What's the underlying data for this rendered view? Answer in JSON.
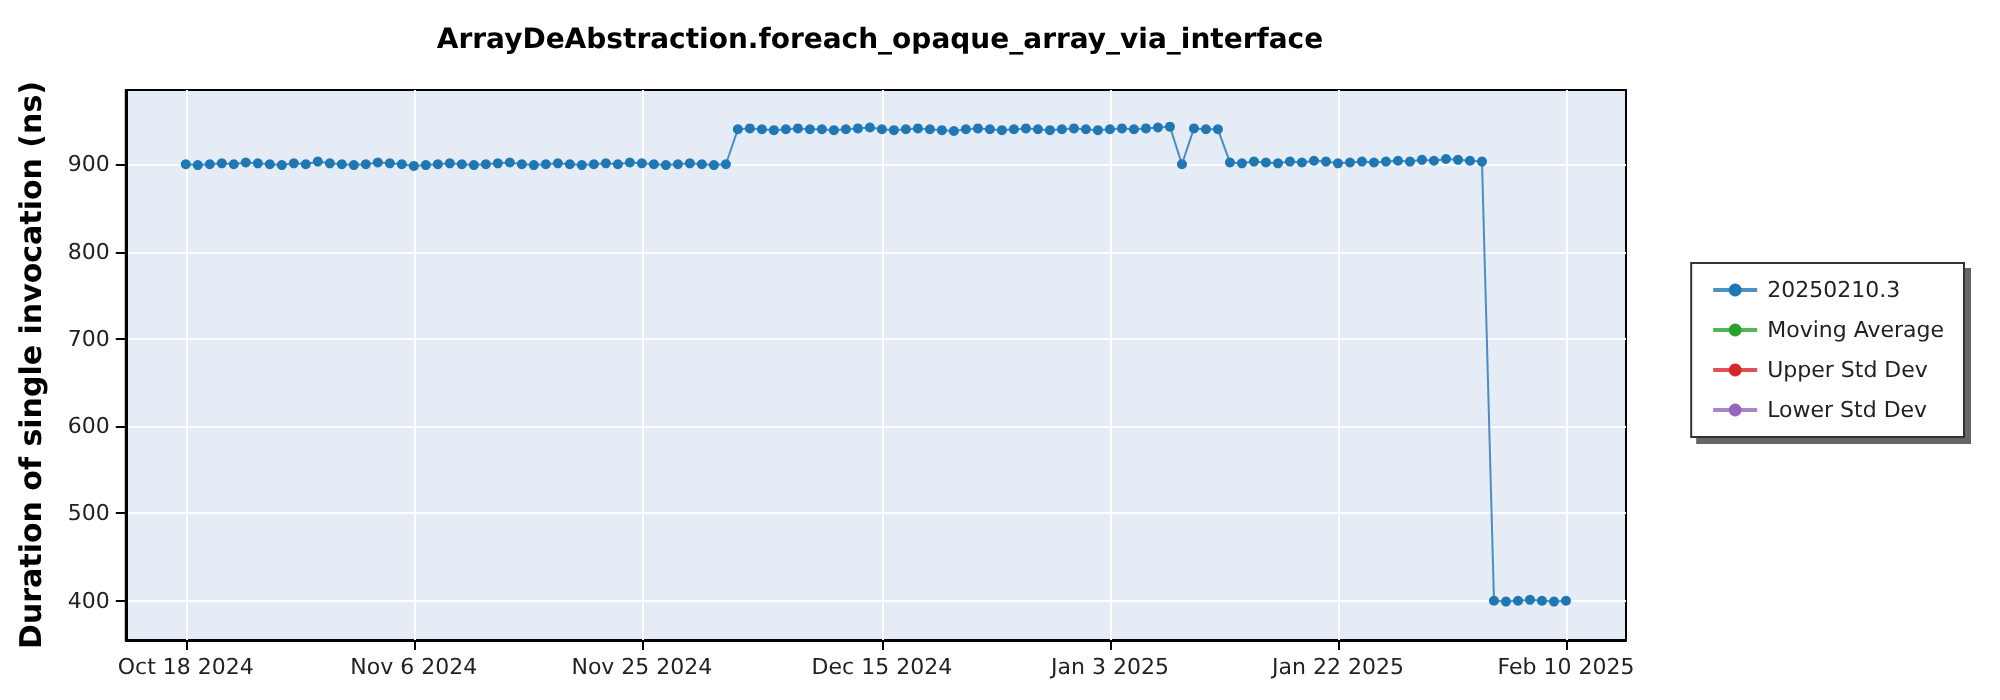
{
  "chart_data": {
    "type": "line",
    "title": "ArrayDeAbstraction.foreach_opaque_array_via_interface",
    "ylabel": "Duration of single invocation (ns)",
    "x": [
      "2024-10-18",
      "2024-10-19",
      "2024-10-20",
      "2024-10-21",
      "2024-10-22",
      "2024-10-23",
      "2024-10-24",
      "2024-10-25",
      "2024-10-26",
      "2024-10-27",
      "2024-10-28",
      "2024-10-29",
      "2024-10-30",
      "2024-10-31",
      "2024-11-01",
      "2024-11-02",
      "2024-11-03",
      "2024-11-04",
      "2024-11-05",
      "2024-11-06",
      "2024-11-07",
      "2024-11-08",
      "2024-11-09",
      "2024-11-10",
      "2024-11-11",
      "2024-11-12",
      "2024-11-13",
      "2024-11-14",
      "2024-11-15",
      "2024-11-16",
      "2024-11-17",
      "2024-11-18",
      "2024-11-19",
      "2024-11-20",
      "2024-11-21",
      "2024-11-22",
      "2024-11-23",
      "2024-11-24",
      "2024-11-25",
      "2024-11-26",
      "2024-11-27",
      "2024-11-28",
      "2024-11-29",
      "2024-11-30",
      "2024-12-01",
      "2024-12-02",
      "2024-12-03",
      "2024-12-04",
      "2024-12-05",
      "2024-12-06",
      "2024-12-07",
      "2024-12-08",
      "2024-12-09",
      "2024-12-10",
      "2024-12-11",
      "2024-12-12",
      "2024-12-13",
      "2024-12-14",
      "2024-12-15",
      "2024-12-16",
      "2024-12-17",
      "2024-12-18",
      "2024-12-19",
      "2024-12-20",
      "2024-12-21",
      "2024-12-22",
      "2024-12-23",
      "2024-12-24",
      "2024-12-25",
      "2024-12-26",
      "2024-12-27",
      "2024-12-28",
      "2024-12-29",
      "2024-12-30",
      "2024-12-31",
      "2025-01-01",
      "2025-01-02",
      "2025-01-03",
      "2025-01-04",
      "2025-01-05",
      "2025-01-06",
      "2025-01-07",
      "2025-01-08",
      "2025-01-09",
      "2025-01-10",
      "2025-01-11",
      "2025-01-12",
      "2025-01-13",
      "2025-01-14",
      "2025-01-15",
      "2025-01-16",
      "2025-01-17",
      "2025-01-18",
      "2025-01-19",
      "2025-01-20",
      "2025-01-21",
      "2025-01-22",
      "2025-01-23",
      "2025-01-24",
      "2025-01-25",
      "2025-01-26",
      "2025-01-27",
      "2025-01-28",
      "2025-01-29",
      "2025-01-30",
      "2025-01-31",
      "2025-02-01",
      "2025-02-02",
      "2025-02-03",
      "2025-02-04",
      "2025-02-05",
      "2025-02-06",
      "2025-02-07",
      "2025-02-08",
      "2025-02-09",
      "2025-02-10"
    ],
    "series": [
      {
        "name": "20250210.3",
        "color": "#1f77b4",
        "values": [
          900,
          899,
          900,
          901,
          900,
          902,
          901,
          900,
          899,
          901,
          900,
          903,
          901,
          900,
          899,
          900,
          902,
          901,
          900,
          898,
          899,
          900,
          901,
          900,
          899,
          900,
          901,
          902,
          900,
          899,
          900,
          901,
          900,
          899,
          900,
          901,
          900,
          902,
          901,
          900,
          899,
          900,
          901,
          900,
          899,
          900,
          940,
          941,
          940,
          939,
          940,
          941,
          940,
          940,
          939,
          940,
          941,
          942,
          940,
          939,
          940,
          941,
          940,
          939,
          938,
          940,
          941,
          940,
          939,
          940,
          941,
          940,
          939,
          940,
          941,
          940,
          939,
          940,
          941,
          940,
          941,
          942,
          943,
          900,
          941,
          940,
          940,
          902,
          901,
          903,
          902,
          901,
          903,
          902,
          904,
          903,
          901,
          902,
          903,
          902,
          903,
          904,
          903,
          905,
          904,
          906,
          905,
          904,
          903,
          400,
          399,
          400,
          401,
          400,
          399,
          400
        ]
      },
      {
        "name": "Moving Average",
        "color": "#2ca02c",
        "values": [
          null,
          null,
          null,
          null,
          null,
          null,
          null,
          null,
          null,
          null,
          null,
          null,
          null,
          null,
          null,
          null,
          null,
          null,
          null,
          null,
          null,
          null,
          null,
          null,
          null,
          null,
          null,
          null,
          null,
          null,
          null,
          null,
          null,
          null,
          null,
          null,
          null,
          null,
          null,
          null,
          null,
          null,
          null,
          null,
          null,
          null,
          null,
          null,
          null,
          null,
          null,
          null,
          null,
          null,
          null,
          null,
          null,
          null,
          null,
          null,
          null,
          null,
          null,
          null,
          null,
          null,
          null,
          null,
          null,
          null,
          null,
          null,
          null,
          null,
          null,
          null,
          null,
          null,
          null,
          null,
          null,
          null,
          null,
          null,
          null,
          null,
          null,
          null,
          null,
          null,
          null,
          null,
          null,
          null,
          null,
          null,
          null,
          null,
          null,
          null,
          null,
          null,
          null,
          null,
          null,
          null,
          null,
          null,
          null,
          null,
          null,
          null,
          null,
          null,
          null,
          null
        ]
      },
      {
        "name": "Upper Std Dev",
        "color": "#d62728",
        "values": [
          null,
          null,
          null,
          null,
          null,
          null,
          null,
          null,
          null,
          null,
          null,
          null,
          null,
          null,
          null,
          null,
          null,
          null,
          null,
          null,
          null,
          null,
          null,
          null,
          null,
          null,
          null,
          null,
          null,
          null,
          null,
          null,
          null,
          null,
          null,
          null,
          null,
          null,
          null,
          null,
          null,
          null,
          null,
          null,
          null,
          null,
          null,
          null,
          null,
          null,
          null,
          null,
          null,
          null,
          null,
          null,
          null,
          null,
          null,
          null,
          null,
          null,
          null,
          null,
          null,
          null,
          null,
          null,
          null,
          null,
          null,
          null,
          null,
          null,
          null,
          null,
          null,
          null,
          null,
          null,
          null,
          null,
          null,
          null,
          null,
          null,
          null,
          null,
          null,
          null,
          null,
          null,
          null,
          null,
          null,
          null,
          null,
          null,
          null,
          null,
          null,
          null,
          null,
          null,
          null,
          null,
          null,
          null,
          null,
          null,
          null,
          null,
          null,
          null,
          null,
          null
        ]
      },
      {
        "name": "Lower Std Dev",
        "color": "#9467bd",
        "values": [
          null,
          null,
          null,
          null,
          null,
          null,
          null,
          null,
          null,
          null,
          null,
          null,
          null,
          null,
          null,
          null,
          null,
          null,
          null,
          null,
          null,
          null,
          null,
          null,
          null,
          null,
          null,
          null,
          null,
          null,
          null,
          null,
          null,
          null,
          null,
          null,
          null,
          null,
          null,
          null,
          null,
          null,
          null,
          null,
          null,
          null,
          null,
          null,
          null,
          null,
          null,
          null,
          null,
          null,
          null,
          null,
          null,
          null,
          null,
          null,
          null,
          null,
          null,
          null,
          null,
          null,
          null,
          null,
          null,
          null,
          null,
          null,
          null,
          null,
          null,
          null,
          null,
          null,
          null,
          null,
          null,
          null,
          null,
          null,
          null,
          null,
          null,
          null,
          null,
          null,
          null,
          null,
          null,
          null,
          null,
          null,
          null,
          null,
          null,
          null,
          null,
          null,
          null,
          null,
          null,
          null,
          null,
          null,
          null,
          null,
          null,
          null,
          null,
          null,
          null,
          null
        ]
      }
    ],
    "xlim": [
      "2024-10-13",
      "2025-02-15"
    ],
    "xticks": [
      {
        "value": "2024-10-18",
        "label": "Oct 18 2024"
      },
      {
        "value": "2024-11-06",
        "label": "Nov 6 2024"
      },
      {
        "value": "2024-11-25",
        "label": "Nov 25 2024"
      },
      {
        "value": "2024-12-15",
        "label": "Dec 15 2024"
      },
      {
        "value": "2025-01-03",
        "label": "Jan 3 2025"
      },
      {
        "value": "2025-01-22",
        "label": "Jan 22 2025"
      },
      {
        "value": "2025-02-10",
        "label": "Feb 10 2025"
      }
    ],
    "ylim": [
      355,
      985
    ],
    "yticks": [
      400,
      500,
      600,
      700,
      800,
      900
    ],
    "grid": true,
    "legend": "right",
    "marker": "circle",
    "line_style": "solid"
  }
}
